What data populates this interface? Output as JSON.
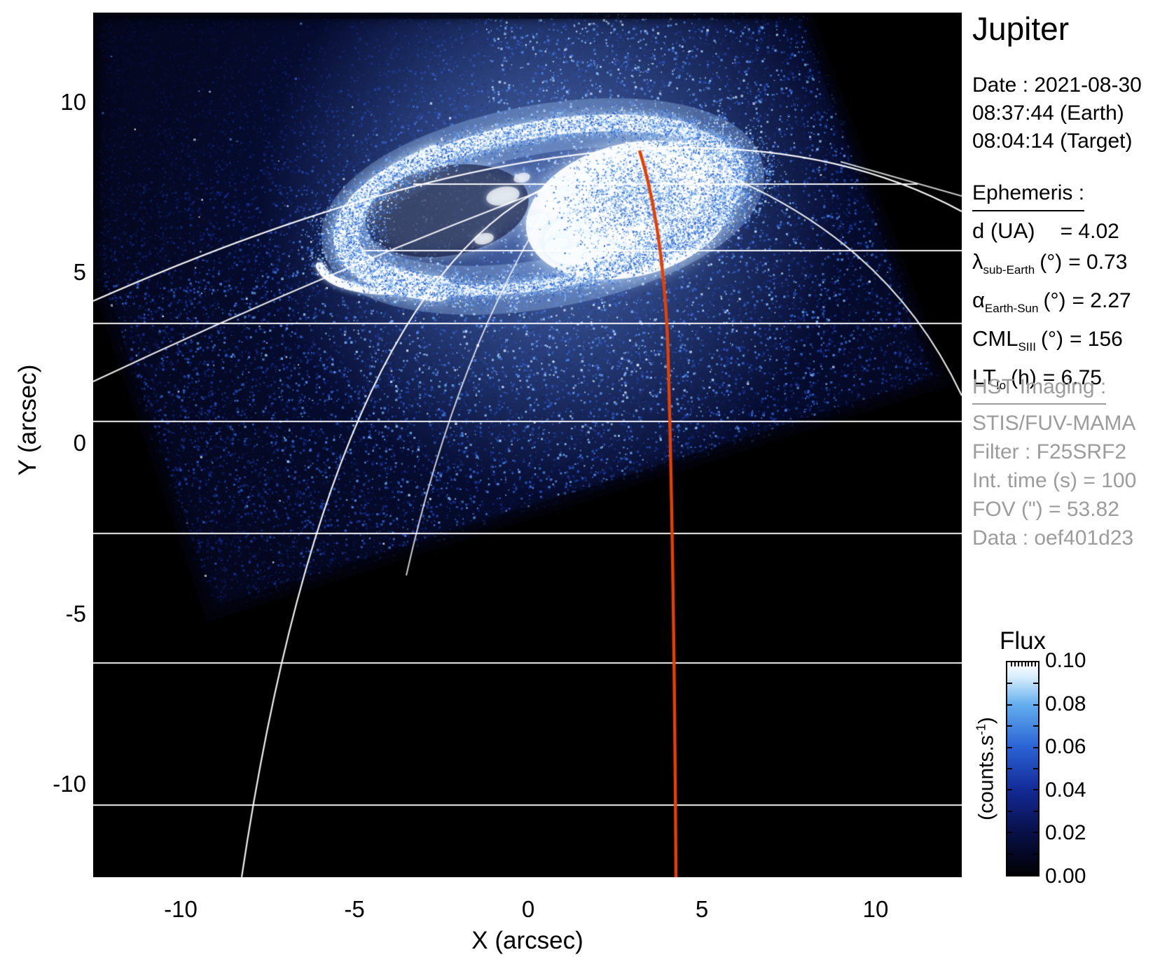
{
  "title": "Jupiter",
  "date_block": {
    "date": "Date : 2021-08-30",
    "earth_time": "08:37:44 (Earth)",
    "target_time": "08:04:14 (Target)"
  },
  "ephemeris": {
    "heading": "Ephemeris :",
    "rows": [
      {
        "sym": "d (UA)",
        "sub": "",
        "unit": "",
        "val": "= 4.02",
        "pad": true
      },
      {
        "sym": "λ",
        "sub": "sub-Earth",
        "unit": "(°)",
        "val": "= 0.73",
        "pad": false
      },
      {
        "sym": "α",
        "sub": "Earth-Sun",
        "unit": "(°)",
        "val": "= 2.27",
        "pad": false
      },
      {
        "sym": "CML",
        "sub": "SIII",
        "unit": "(°)",
        "val": "= 156",
        "pad": false
      },
      {
        "sym": "LT",
        "sub": "Io",
        "unit": "(h)",
        "val": "= 6.75",
        "pad": false
      }
    ]
  },
  "hst": {
    "heading": "HST Imaging :",
    "lines": [
      "STIS/FUV-MAMA",
      "Filter : F25SRF2",
      "Int. time (s) = 100",
      "FOV (\") = 53.82",
      "Data : oef401d23"
    ]
  },
  "axes": {
    "x_label": "X (arcsec)",
    "y_label": "Y (arcsec)",
    "x_ticks": [
      "-10",
      "-5",
      "0",
      "5",
      "10"
    ],
    "y_ticks": [
      "10",
      "5",
      "0",
      "-5",
      "-10"
    ]
  },
  "colorbar": {
    "title": "Flux",
    "unit_pre": "(counts.s",
    "unit_sup": "-1",
    "unit_post": ")",
    "labels": [
      "0.10",
      "0.08",
      "0.06",
      "0.04",
      "0.02",
      "0.00"
    ]
  },
  "chart_data": {
    "type": "heatmap",
    "title": "Jupiter",
    "xlabel": "X (arcsec)",
    "ylabel": "Y (arcsec)",
    "xlim": [
      -12.6,
      12.6
    ],
    "ylim": [
      -12.7,
      12.6
    ],
    "x_ticks": [
      -10,
      -5,
      0,
      5,
      10
    ],
    "y_ticks": [
      10,
      5,
      0,
      -5,
      -10
    ],
    "grid": "planetary graticule (white parallels and meridians), red CML meridian near x=4 arcsec",
    "colorbar": {
      "title": "Flux",
      "units": "counts.s-1",
      "range": [
        0.0,
        0.1
      ],
      "ticks": [
        0.1,
        0.08,
        0.06,
        0.04,
        0.02,
        0.0
      ]
    },
    "content": "HST STIS far-UV image: Jupiter northern auroral oval, bright white emission ring centered near X=0.5 arcsec, Y=6.5 arcsec spanning roughly X -6..6, Y 4..9; tilted detector field filled with faint blue background counts; black sky elsewhere",
    "ephemeris_values": {
      "d_UA": 4.02,
      "lambda_subEarth_deg": 0.73,
      "alpha_EarthSun_deg": 2.27,
      "CML_SIII_deg": 156,
      "LT_Io_h": 6.75
    },
    "observation": {
      "date": "2021-08-30",
      "earth_time": "08:37:44",
      "target_time": "08:04:14",
      "instrument": "STIS/FUV-MAMA",
      "filter": "F25SRF2",
      "int_time_s": 100,
      "fov_arcsec": 53.82,
      "dataset": "oef401d23"
    }
  },
  "layout_colors": {
    "red_meridian": "#e64000",
    "grid_line": "#ffffff",
    "noise_deep_blue": "#132a96",
    "gray_text": "#9c9c9c"
  }
}
